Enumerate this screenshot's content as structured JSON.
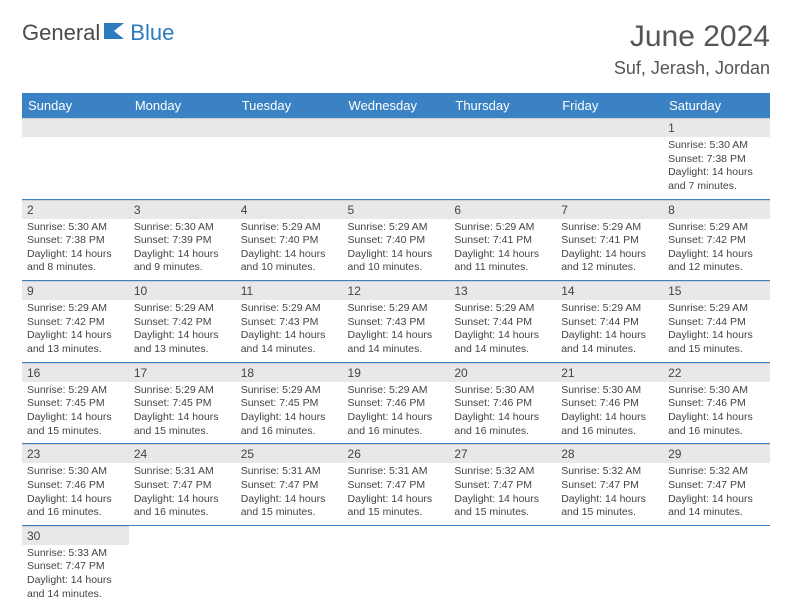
{
  "brand": {
    "part1": "General",
    "part2": "Blue"
  },
  "title": "June 2024",
  "location": "Suf, Jerash, Jordan",
  "colors": {
    "header_bg": "#3b82c4",
    "header_fg": "#ffffff",
    "daynum_bg": "#e8e8e8",
    "row_border": "#3b82c4",
    "brand_blue": "#2b7bbd",
    "text": "#444444"
  },
  "weekdays": [
    "Sunday",
    "Monday",
    "Tuesday",
    "Wednesday",
    "Thursday",
    "Friday",
    "Saturday"
  ],
  "first_weekday_index": 6,
  "days": [
    {
      "n": 1,
      "sunrise": "5:30 AM",
      "sunset": "7:38 PM",
      "daylight": "14 hours and 7 minutes."
    },
    {
      "n": 2,
      "sunrise": "5:30 AM",
      "sunset": "7:38 PM",
      "daylight": "14 hours and 8 minutes."
    },
    {
      "n": 3,
      "sunrise": "5:30 AM",
      "sunset": "7:39 PM",
      "daylight": "14 hours and 9 minutes."
    },
    {
      "n": 4,
      "sunrise": "5:29 AM",
      "sunset": "7:40 PM",
      "daylight": "14 hours and 10 minutes."
    },
    {
      "n": 5,
      "sunrise": "5:29 AM",
      "sunset": "7:40 PM",
      "daylight": "14 hours and 10 minutes."
    },
    {
      "n": 6,
      "sunrise": "5:29 AM",
      "sunset": "7:41 PM",
      "daylight": "14 hours and 11 minutes."
    },
    {
      "n": 7,
      "sunrise": "5:29 AM",
      "sunset": "7:41 PM",
      "daylight": "14 hours and 12 minutes."
    },
    {
      "n": 8,
      "sunrise": "5:29 AM",
      "sunset": "7:42 PM",
      "daylight": "14 hours and 12 minutes."
    },
    {
      "n": 9,
      "sunrise": "5:29 AM",
      "sunset": "7:42 PM",
      "daylight": "14 hours and 13 minutes."
    },
    {
      "n": 10,
      "sunrise": "5:29 AM",
      "sunset": "7:42 PM",
      "daylight": "14 hours and 13 minutes."
    },
    {
      "n": 11,
      "sunrise": "5:29 AM",
      "sunset": "7:43 PM",
      "daylight": "14 hours and 14 minutes."
    },
    {
      "n": 12,
      "sunrise": "5:29 AM",
      "sunset": "7:43 PM",
      "daylight": "14 hours and 14 minutes."
    },
    {
      "n": 13,
      "sunrise": "5:29 AM",
      "sunset": "7:44 PM",
      "daylight": "14 hours and 14 minutes."
    },
    {
      "n": 14,
      "sunrise": "5:29 AM",
      "sunset": "7:44 PM",
      "daylight": "14 hours and 14 minutes."
    },
    {
      "n": 15,
      "sunrise": "5:29 AM",
      "sunset": "7:44 PM",
      "daylight": "14 hours and 15 minutes."
    },
    {
      "n": 16,
      "sunrise": "5:29 AM",
      "sunset": "7:45 PM",
      "daylight": "14 hours and 15 minutes."
    },
    {
      "n": 17,
      "sunrise": "5:29 AM",
      "sunset": "7:45 PM",
      "daylight": "14 hours and 15 minutes."
    },
    {
      "n": 18,
      "sunrise": "5:29 AM",
      "sunset": "7:45 PM",
      "daylight": "14 hours and 16 minutes."
    },
    {
      "n": 19,
      "sunrise": "5:29 AM",
      "sunset": "7:46 PM",
      "daylight": "14 hours and 16 minutes."
    },
    {
      "n": 20,
      "sunrise": "5:30 AM",
      "sunset": "7:46 PM",
      "daylight": "14 hours and 16 minutes."
    },
    {
      "n": 21,
      "sunrise": "5:30 AM",
      "sunset": "7:46 PM",
      "daylight": "14 hours and 16 minutes."
    },
    {
      "n": 22,
      "sunrise": "5:30 AM",
      "sunset": "7:46 PM",
      "daylight": "14 hours and 16 minutes."
    },
    {
      "n": 23,
      "sunrise": "5:30 AM",
      "sunset": "7:46 PM",
      "daylight": "14 hours and 16 minutes."
    },
    {
      "n": 24,
      "sunrise": "5:31 AM",
      "sunset": "7:47 PM",
      "daylight": "14 hours and 16 minutes."
    },
    {
      "n": 25,
      "sunrise": "5:31 AM",
      "sunset": "7:47 PM",
      "daylight": "14 hours and 15 minutes."
    },
    {
      "n": 26,
      "sunrise": "5:31 AM",
      "sunset": "7:47 PM",
      "daylight": "14 hours and 15 minutes."
    },
    {
      "n": 27,
      "sunrise": "5:32 AM",
      "sunset": "7:47 PM",
      "daylight": "14 hours and 15 minutes."
    },
    {
      "n": 28,
      "sunrise": "5:32 AM",
      "sunset": "7:47 PM",
      "daylight": "14 hours and 15 minutes."
    },
    {
      "n": 29,
      "sunrise": "5:32 AM",
      "sunset": "7:47 PM",
      "daylight": "14 hours and 14 minutes."
    },
    {
      "n": 30,
      "sunrise": "5:33 AM",
      "sunset": "7:47 PM",
      "daylight": "14 hours and 14 minutes."
    }
  ],
  "labels": {
    "sunrise": "Sunrise:",
    "sunset": "Sunset:",
    "daylight": "Daylight:"
  }
}
